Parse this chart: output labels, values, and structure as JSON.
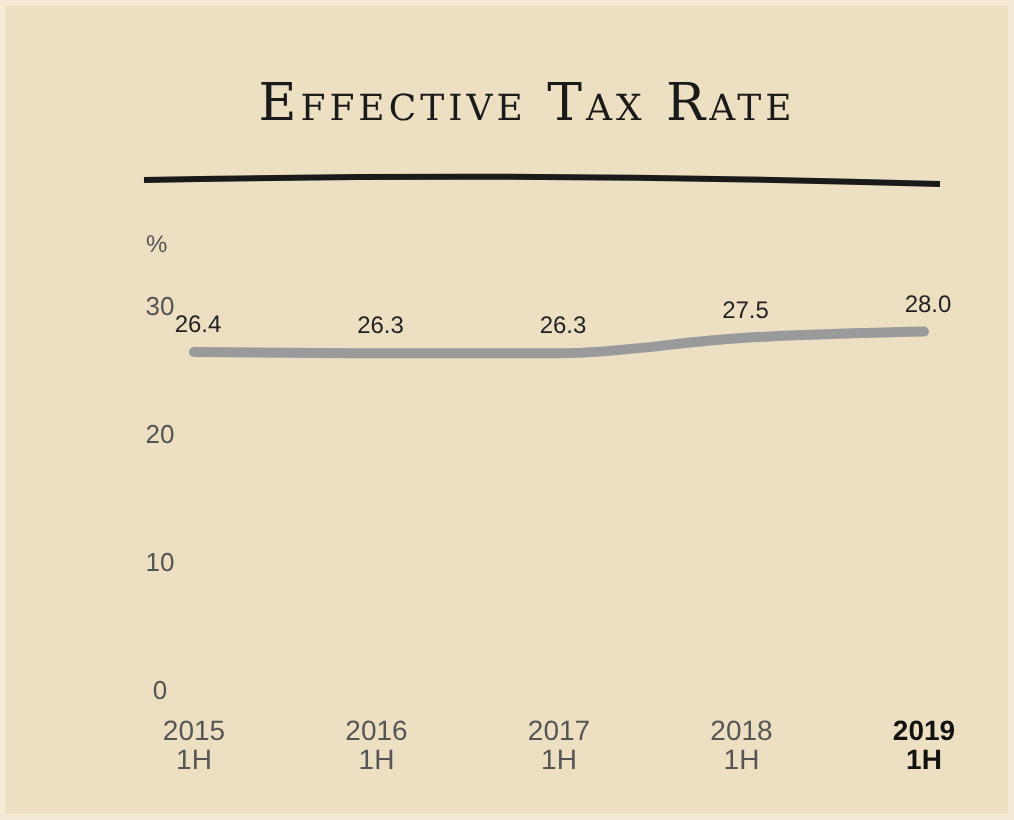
{
  "chart_data": {
    "type": "line",
    "title": "Effective Tax Rate",
    "ylabel": "%",
    "categories": [
      "2015 1H",
      "2016 1H",
      "2017 1H",
      "2018 1H",
      "2019 1H"
    ],
    "series": [
      {
        "color": "#999a9c",
        "values": [
          26.4,
          26.3,
          26.3,
          27.5,
          28.0
        ],
        "value_labels": [
          "26.4",
          "26.3",
          "26.3",
          "27.5",
          "28.0"
        ]
      }
    ],
    "ylim": [
      0,
      30
    ],
    "yticks": [
      0,
      10,
      20,
      30
    ],
    "grid": false,
    "marker": "none",
    "line_style": "solid"
  }
}
